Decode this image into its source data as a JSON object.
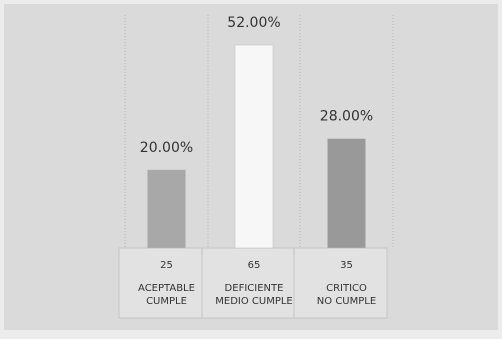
{
  "chart_data": {
    "type": "bar",
    "categories": [
      [
        "ACEPTABLE",
        "CUMPLE"
      ],
      [
        "DEFICIENTE",
        "MEDIO CUMPLE"
      ],
      [
        "CRITICO",
        "NO CUMPLE"
      ]
    ],
    "values": [
      20,
      52,
      28
    ],
    "value_labels": [
      "20.00%",
      "52.00%",
      "28.00%"
    ],
    "counts": [
      25,
      65,
      35
    ],
    "colors": [
      "#a8a8a8",
      "#f7f7f7",
      "#999999"
    ]
  }
}
